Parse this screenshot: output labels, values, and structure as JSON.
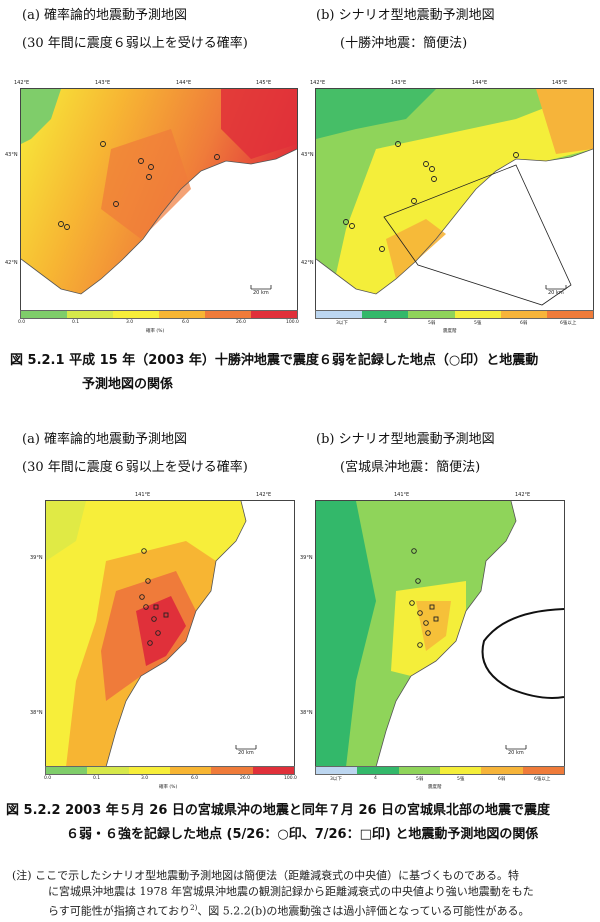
{
  "fig1": {
    "left_title": "(a)  確率論的地震動予測地図",
    "left_sub": "(30 年間に震度６弱以上を受ける確率)",
    "right_title": "(b)  シナリオ型地震動予測地図",
    "right_sub": "(十勝沖地震：簡便法)",
    "lon_ticks": [
      "142°E",
      "143°E",
      "144°E",
      "145°E"
    ],
    "lat_ticks": [
      "43°N",
      "42°N"
    ],
    "scale": "20 km",
    "prob_legend_labels": [
      "0.0",
      "0.1",
      "3.0",
      "6.0",
      "26.0",
      "100.0"
    ],
    "prob_legend_title": "確率 (%)",
    "int_legend_labels": [
      "3以下",
      "4",
      "5弱",
      "5強",
      "6弱",
      "6強以上"
    ],
    "int_legend_title": "震度階",
    "caption_line1": "図 5.2.1   平成 15 年（2003 年）十勝沖地震で震度６弱を記録した地点（○印）と地震動",
    "caption_line2": "予測地図の関係"
  },
  "fig2": {
    "left_title": "(a)  確率論的地震動予測地図",
    "left_sub": "(30 年間に震度６弱以上を受ける確率)",
    "right_title": "(b)  シナリオ型地震動予測地図",
    "right_sub": "(宮城県沖地震：簡便法)",
    "lon_ticks": [
      "141°E",
      "142°E"
    ],
    "lat_ticks": [
      "39°N",
      "38°N"
    ],
    "scale": "20 km",
    "prob_legend_labels": [
      "0.0",
      "0.1",
      "3.0",
      "6.0",
      "26.0",
      "100.0"
    ],
    "prob_legend_title": "確率 (%)",
    "int_legend_labels": [
      "3以下",
      "4",
      "5弱",
      "5強",
      "6弱",
      "6強以上"
    ],
    "int_legend_title": "震度階",
    "caption_line1": "図 5.2.2    2003 年５月 26 日の宮城県沖の地震と同年７月 26 日の宮城県北部の地震で震度",
    "caption_line2": "６弱・６強を記録した地点 (5/26：○印、7/26：□印) と地震動予測地図の関係"
  },
  "note": {
    "line1": "(注) ここで示したシナリオ型地震動予測地図は簡便法（距離減衰式の中央値）に基づくものである。特",
    "line2": "に宮城県沖地震は 1978 年宮城県沖地震の観測記録から距離減衰式の中央値より強い地震動をもた",
    "line3": "らす可能性が指摘されており",
    "sup": "2)",
    "line3b": "、図 5.2.2(b)の地震動強さは過小評価となっている可能性がある。"
  },
  "colors": {
    "prob": [
      "#7fcd6a",
      "#d6e84a",
      "#f7ee3a",
      "#f7b533",
      "#ef7b3a",
      "#e0303a"
    ],
    "intensity": [
      "#bcd6f0",
      "#33b86a",
      "#8fd45a",
      "#f4ee3a",
      "#f6b43a",
      "#ef7b3a"
    ]
  }
}
